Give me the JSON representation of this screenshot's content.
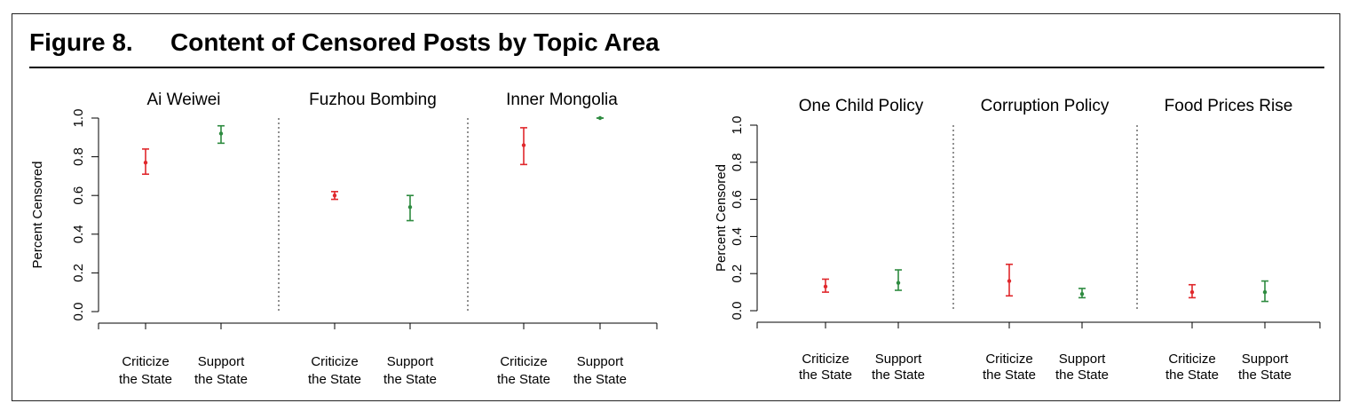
{
  "figure": {
    "label": "Figure 8.",
    "title": "Content of Censored Posts by Topic Area"
  },
  "colors": {
    "criticize": "#e0282c",
    "support": "#2e8b40",
    "axis": "#000000",
    "divider": "#555555"
  },
  "chart_data": [
    {
      "type": "scatter",
      "error_bars": true,
      "ylabel": "Percent Censored",
      "ylim": [
        0,
        1
      ],
      "yticks": [
        "0.0",
        "0.2",
        "0.4",
        "0.6",
        "0.8",
        "1.0"
      ],
      "category_labels": [
        [
          "Criticize",
          "the State"
        ],
        [
          "Support",
          "the State"
        ]
      ],
      "panels": [
        {
          "title": "Ai Weiwei",
          "points": [
            {
              "group": "criticize",
              "y": 0.77,
              "lo": 0.71,
              "hi": 0.84
            },
            {
              "group": "support",
              "y": 0.92,
              "lo": 0.87,
              "hi": 0.96
            }
          ]
        },
        {
          "title": "Fuzhou Bombing",
          "points": [
            {
              "group": "criticize",
              "y": 0.6,
              "lo": 0.58,
              "hi": 0.62
            },
            {
              "group": "support",
              "y": 0.54,
              "lo": 0.47,
              "hi": 0.6
            }
          ]
        },
        {
          "title": "Inner Mongolia",
          "points": [
            {
              "group": "criticize",
              "y": 0.86,
              "lo": 0.76,
              "hi": 0.95
            },
            {
              "group": "support",
              "y": 1.0,
              "lo": 1.0,
              "hi": 1.0
            }
          ]
        }
      ]
    },
    {
      "type": "scatter",
      "error_bars": true,
      "ylabel": "Percent Censored",
      "ylim": [
        0,
        1
      ],
      "yticks": [
        "0.0",
        "0.2",
        "0.4",
        "0.6",
        "0.8",
        "1.0"
      ],
      "category_labels": [
        [
          "Criticize",
          "the State"
        ],
        [
          "Support",
          "the State"
        ]
      ],
      "panels": [
        {
          "title": "One Child Policy",
          "points": [
            {
              "group": "criticize",
              "y": 0.13,
              "lo": 0.1,
              "hi": 0.17
            },
            {
              "group": "support",
              "y": 0.15,
              "lo": 0.11,
              "hi": 0.22
            }
          ]
        },
        {
          "title": "Corruption Policy",
          "points": [
            {
              "group": "criticize",
              "y": 0.16,
              "lo": 0.08,
              "hi": 0.25
            },
            {
              "group": "support",
              "y": 0.09,
              "lo": 0.07,
              "hi": 0.12
            }
          ]
        },
        {
          "title": "Food Prices Rise",
          "points": [
            {
              "group": "criticize",
              "y": 0.1,
              "lo": 0.07,
              "hi": 0.14
            },
            {
              "group": "support",
              "y": 0.1,
              "lo": 0.05,
              "hi": 0.16
            }
          ]
        }
      ]
    }
  ]
}
